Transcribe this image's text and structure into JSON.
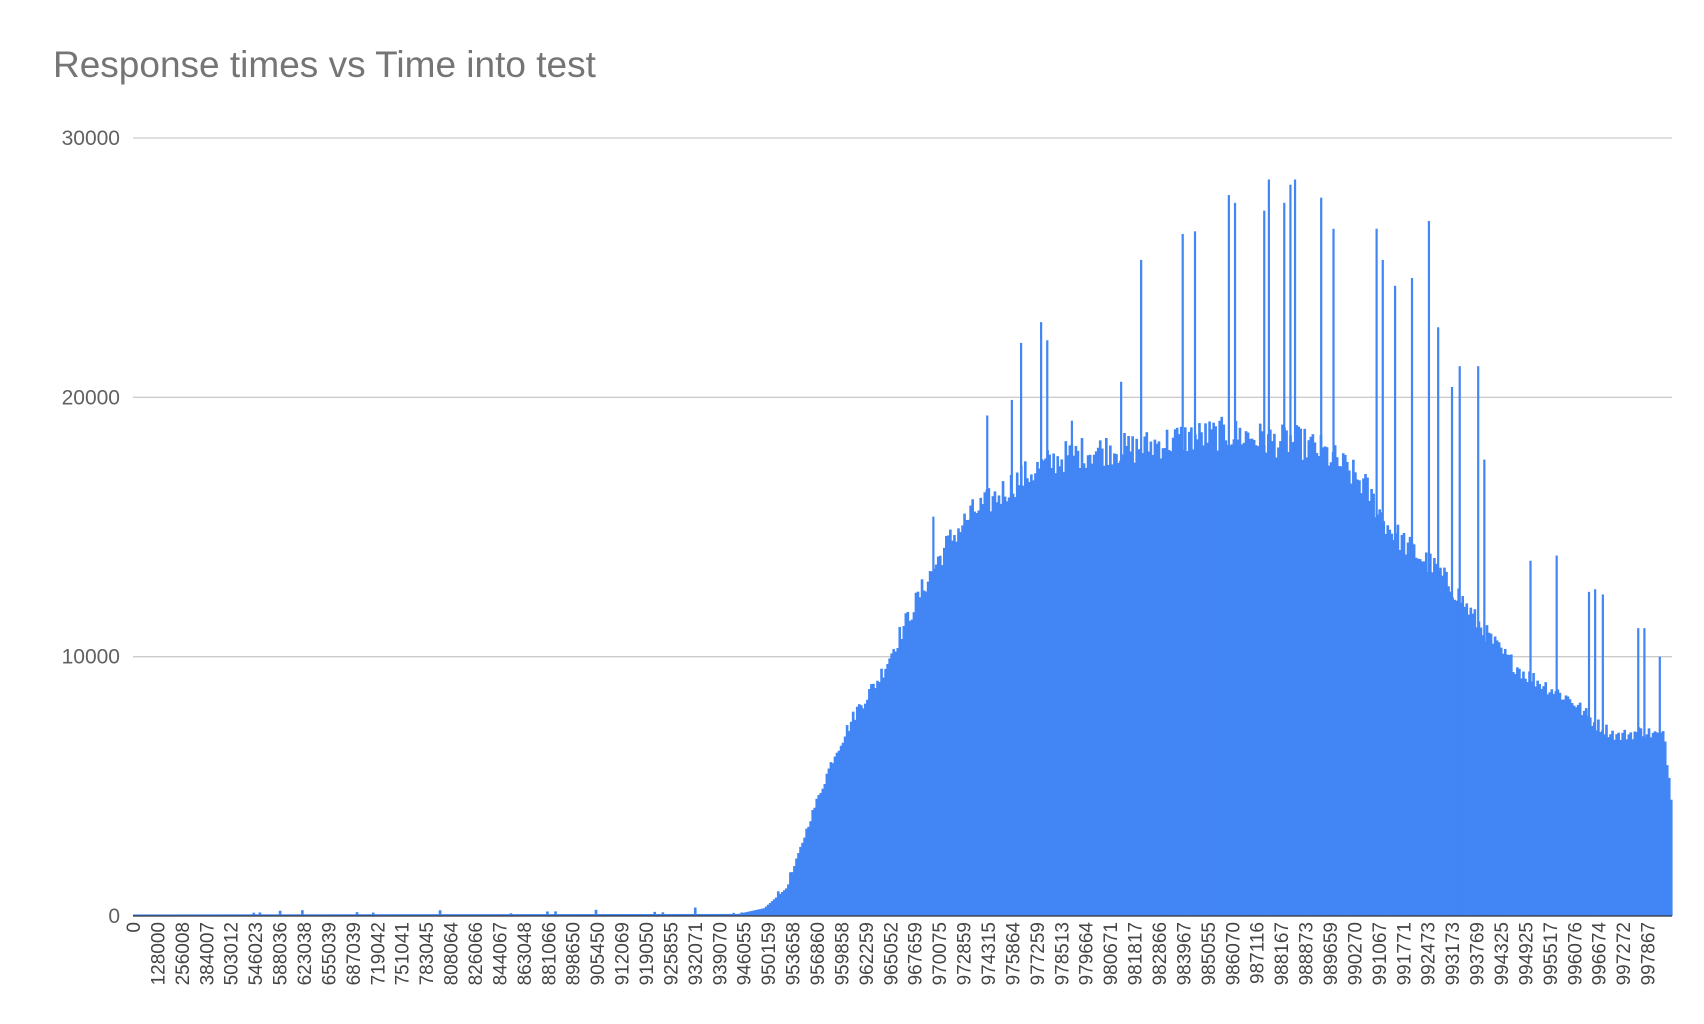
{
  "chart_data": {
    "type": "bar",
    "title": "Response times vs Time into test",
    "xlabel": "",
    "ylabel": "",
    "ylim": [
      0,
      30000
    ],
    "yticks": [
      0,
      10000,
      20000,
      30000
    ],
    "grid": true,
    "legend": "none",
    "bar_color": "#4285f4",
    "x_tick_labels": [
      "0",
      "128000",
      "256008",
      "384007",
      "503012",
      "546023",
      "588036",
      "623038",
      "655039",
      "687039",
      "719042",
      "751041",
      "783045",
      "808064",
      "826066",
      "844067",
      "863048",
      "881066",
      "898650",
      "905450",
      "912069",
      "919050",
      "925855",
      "932071",
      "939070",
      "946055",
      "950159",
      "953658",
      "956860",
      "959858",
      "962259",
      "965052",
      "967659",
      "970075",
      "972859",
      "974315",
      "975864",
      "977259",
      "978513",
      "979664",
      "980671",
      "981817",
      "982866",
      "983967",
      "985055",
      "986070",
      "987116",
      "988167",
      "988873",
      "989659",
      "990270",
      "991067",
      "991771",
      "992473",
      "993173",
      "993769",
      "994325",
      "994925",
      "995517",
      "996076",
      "996674",
      "997272",
      "997867"
    ],
    "envelope": {
      "x": [
        0,
        0.393,
        0.41,
        0.425,
        0.44,
        0.455,
        0.47,
        0.485,
        0.5,
        0.515,
        0.53,
        0.545,
        0.56,
        0.575,
        0.59,
        0.605,
        0.62,
        0.635,
        0.65,
        0.665,
        0.68,
        0.695,
        0.71,
        0.725,
        0.74,
        0.755,
        0.77,
        0.785,
        0.8,
        0.815,
        0.83,
        0.845,
        0.86,
        0.875,
        0.89,
        0.905,
        0.92,
        0.935,
        0.95,
        0.965,
        0.98,
        0.995,
        1.0
      ],
      "y": [
        60,
        80,
        300,
        1100,
        3800,
        6200,
        8000,
        9300,
        11200,
        13000,
        14600,
        15700,
        16300,
        17000,
        17500,
        17900,
        18100,
        18200,
        18200,
        18400,
        18600,
        18700,
        18800,
        18700,
        18500,
        18500,
        18200,
        17600,
        16800,
        15200,
        14300,
        13600,
        12600,
        11300,
        10200,
        9400,
        8900,
        8400,
        7500,
        7000,
        7200,
        7000,
        4300
      ]
    },
    "spikes": [
      {
        "x": 0.52,
        "value": 15400
      },
      {
        "x": 0.555,
        "value": 19300
      },
      {
        "x": 0.577,
        "value": 22100
      },
      {
        "x": 0.571,
        "value": 19900
      },
      {
        "x": 0.59,
        "value": 22900
      },
      {
        "x": 0.594,
        "value": 22200
      },
      {
        "x": 0.61,
        "value": 19100
      },
      {
        "x": 0.642,
        "value": 20600
      },
      {
        "x": 0.655,
        "value": 25300
      },
      {
        "x": 0.682,
        "value": 26300
      },
      {
        "x": 0.69,
        "value": 26400
      },
      {
        "x": 0.712,
        "value": 27800
      },
      {
        "x": 0.716,
        "value": 27500
      },
      {
        "x": 0.735,
        "value": 27200
      },
      {
        "x": 0.738,
        "value": 28400
      },
      {
        "x": 0.748,
        "value": 27500
      },
      {
        "x": 0.752,
        "value": 28200
      },
      {
        "x": 0.755,
        "value": 28400
      },
      {
        "x": 0.772,
        "value": 27700
      },
      {
        "x": 0.78,
        "value": 26500
      },
      {
        "x": 0.808,
        "value": 26500
      },
      {
        "x": 0.812,
        "value": 25300
      },
      {
        "x": 0.82,
        "value": 24300
      },
      {
        "x": 0.831,
        "value": 24600
      },
      {
        "x": 0.842,
        "value": 26800
      },
      {
        "x": 0.848,
        "value": 22700
      },
      {
        "x": 0.857,
        "value": 20400
      },
      {
        "x": 0.862,
        "value": 21200
      },
      {
        "x": 0.874,
        "value": 21200
      },
      {
        "x": 0.878,
        "value": 17600
      },
      {
        "x": 0.908,
        "value": 13700
      },
      {
        "x": 0.925,
        "value": 13900
      },
      {
        "x": 0.946,
        "value": 12500
      },
      {
        "x": 0.95,
        "value": 12600
      },
      {
        "x": 0.955,
        "value": 12400
      },
      {
        "x": 0.978,
        "value": 11100
      },
      {
        "x": 0.982,
        "value": 11100
      },
      {
        "x": 0.992,
        "value": 10000
      }
    ]
  }
}
